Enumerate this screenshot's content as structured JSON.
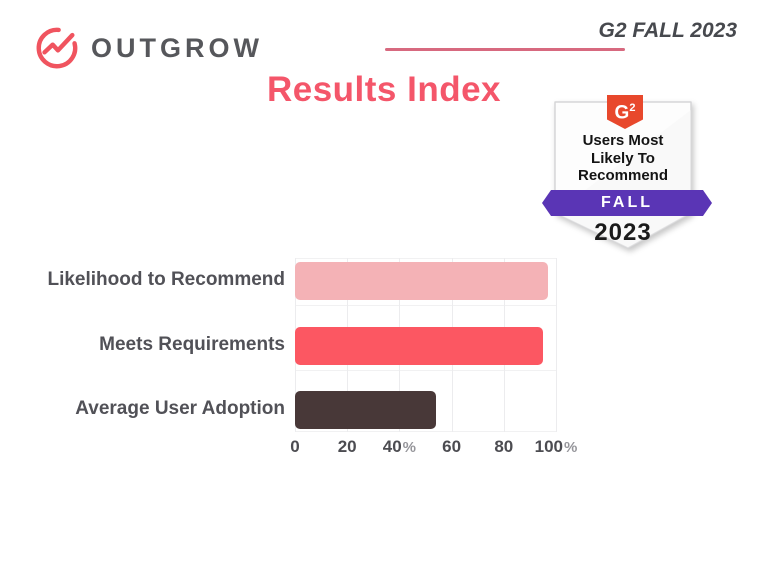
{
  "header": {
    "brand": "OUTGROW",
    "edition": "G2 FALL 2023"
  },
  "title": "Results Index",
  "badge": {
    "g2_logo": {
      "letter": "G",
      "sup": "2"
    },
    "lines": [
      "Users Most",
      "Likely To",
      "Recommend"
    ],
    "season": "FALL",
    "year": "2023",
    "colors": {
      "tag": "#e8482c",
      "ribbon": "#5a35b5"
    }
  },
  "chart_data": {
    "type": "bar",
    "orientation": "horizontal",
    "title": "Results Index",
    "categories": [
      "Likelihood to Recommend",
      "Meets Requirements",
      "Average User Adoption"
    ],
    "values": [
      97,
      95,
      54
    ],
    "bar_colors": [
      "#f4b2b6",
      "#fc5762",
      "#483838"
    ],
    "xlim": [
      0,
      100
    ],
    "x_ticks": [
      0,
      20,
      40,
      60,
      80,
      100
    ],
    "x_tick_labels": [
      "0",
      "20",
      "40%",
      "60",
      "80",
      "100%"
    ],
    "grid": true,
    "legend": false,
    "xlabel": "",
    "ylabel": ""
  },
  "colors": {
    "brand_red": "#f0545f",
    "brand_gray": "#56575b",
    "title_pink": "#f4566a",
    "rule_pink": "#d7697f",
    "label_gray": "#515157",
    "gridline": "#ececee"
  }
}
